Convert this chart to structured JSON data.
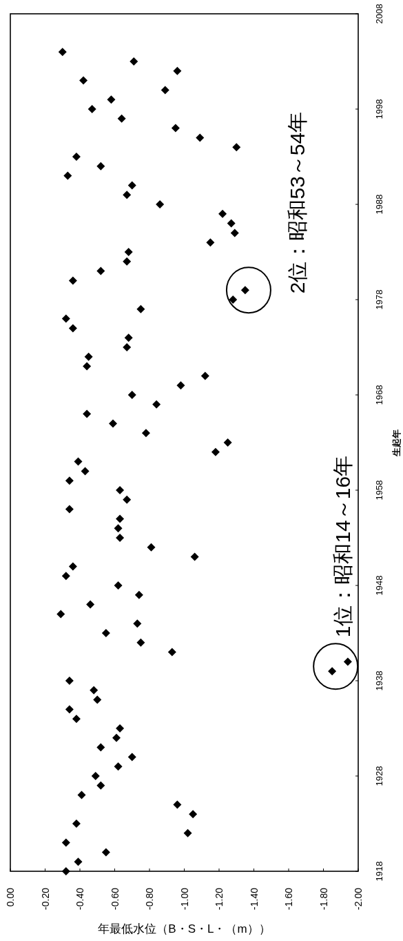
{
  "chart_data": {
    "type": "scatter",
    "xlabel": "年最低水位（B・S・L・（m））",
    "ylabel": "生起年",
    "x": [
      -0.32,
      -0.39,
      -0.55,
      -0.32,
      -1.02,
      -0.38,
      -1.05,
      -0.96,
      -0.41,
      -0.52,
      -0.49,
      -0.62,
      -0.7,
      -0.52,
      -0.61,
      -0.63,
      -0.38,
      -0.34,
      -0.5,
      -0.48,
      -0.34,
      -1.85,
      -1.94,
      -0.93,
      -0.75,
      -0.55,
      -0.73,
      -0.29,
      -0.46,
      -0.74,
      -0.62,
      -0.32,
      -0.36,
      -1.06,
      -0.81,
      -0.63,
      -0.62,
      -0.63,
      -0.34,
      -0.67,
      -0.63,
      -0.34,
      -0.43,
      -0.39,
      -1.18,
      -1.25,
      -0.78,
      -0.59,
      -0.44,
      -0.84,
      -0.7,
      -0.98,
      -1.12,
      -0.44,
      -0.45,
      -0.67,
      -0.68,
      -0.36,
      -0.32,
      -0.75,
      -1.28,
      -1.35,
      -0.36,
      -0.52,
      -0.67,
      -0.68,
      -1.15,
      -1.29,
      -1.27,
      -1.22,
      -0.86,
      -0.67,
      -0.7,
      -0.33,
      -0.52,
      -0.38,
      -1.3,
      -1.09,
      -0.95,
      -0.64,
      -0.47,
      -0.58,
      -0.89,
      -0.42,
      -0.96,
      -0.71,
      -0.3
    ],
    "values": [
      1918,
      1919,
      1920,
      1921,
      1922,
      1923,
      1924,
      1925,
      1926,
      1927,
      1928,
      1929,
      1930,
      1931,
      1932,
      1933,
      1934,
      1935,
      1936,
      1937,
      1938,
      1939,
      1940,
      1941,
      1942,
      1943,
      1944,
      1945,
      1946,
      1947,
      1948,
      1949,
      1950,
      1951,
      1952,
      1953,
      1954,
      1955,
      1956,
      1957,
      1958,
      1959,
      1960,
      1961,
      1962,
      1963,
      1964,
      1965,
      1966,
      1967,
      1968,
      1969,
      1970,
      1971,
      1972,
      1973,
      1974,
      1975,
      1976,
      1977,
      1978,
      1979,
      1980,
      1981,
      1982,
      1983,
      1984,
      1985,
      1986,
      1987,
      1988,
      1989,
      1990,
      1991,
      1992,
      1993,
      1994,
      1995,
      1996,
      1997,
      1998,
      1999,
      2000,
      2001,
      2002,
      2003,
      2004
    ],
    "color": "#000000",
    "marker": "diamond",
    "ylim": [
      1918,
      2008
    ],
    "yticks": [
      1918,
      1928,
      1938,
      1948,
      1958,
      1968,
      1978,
      1988,
      1998,
      2008
    ],
    "xlim": [
      0,
      -2.0
    ],
    "xticks": [
      {
        "value": 0,
        "label": "0.00"
      },
      {
        "value": -0.2,
        "label": "-0.20"
      },
      {
        "value": -0.4,
        "label": "-0.40"
      },
      {
        "value": -0.6,
        "label": "-0.60"
      },
      {
        "value": -0.8,
        "label": "-0.80"
      },
      {
        "value": -1.0,
        "label": "-1.00"
      },
      {
        "value": -1.2,
        "label": "-1.20"
      },
      {
        "value": -1.4,
        "label": "-1.40"
      },
      {
        "value": -1.6,
        "label": "-1.60"
      },
      {
        "value": -1.8,
        "label": "-1.80"
      },
      {
        "value": -2.0,
        "label": "-2.00"
      }
    ],
    "annotations": [
      {
        "text": "1位：昭和14～16年",
        "x": -1.87,
        "y": 1939.5
      },
      {
        "text": "2位：昭和53～54年",
        "x": -1.37,
        "y": 1979
      }
    ]
  }
}
